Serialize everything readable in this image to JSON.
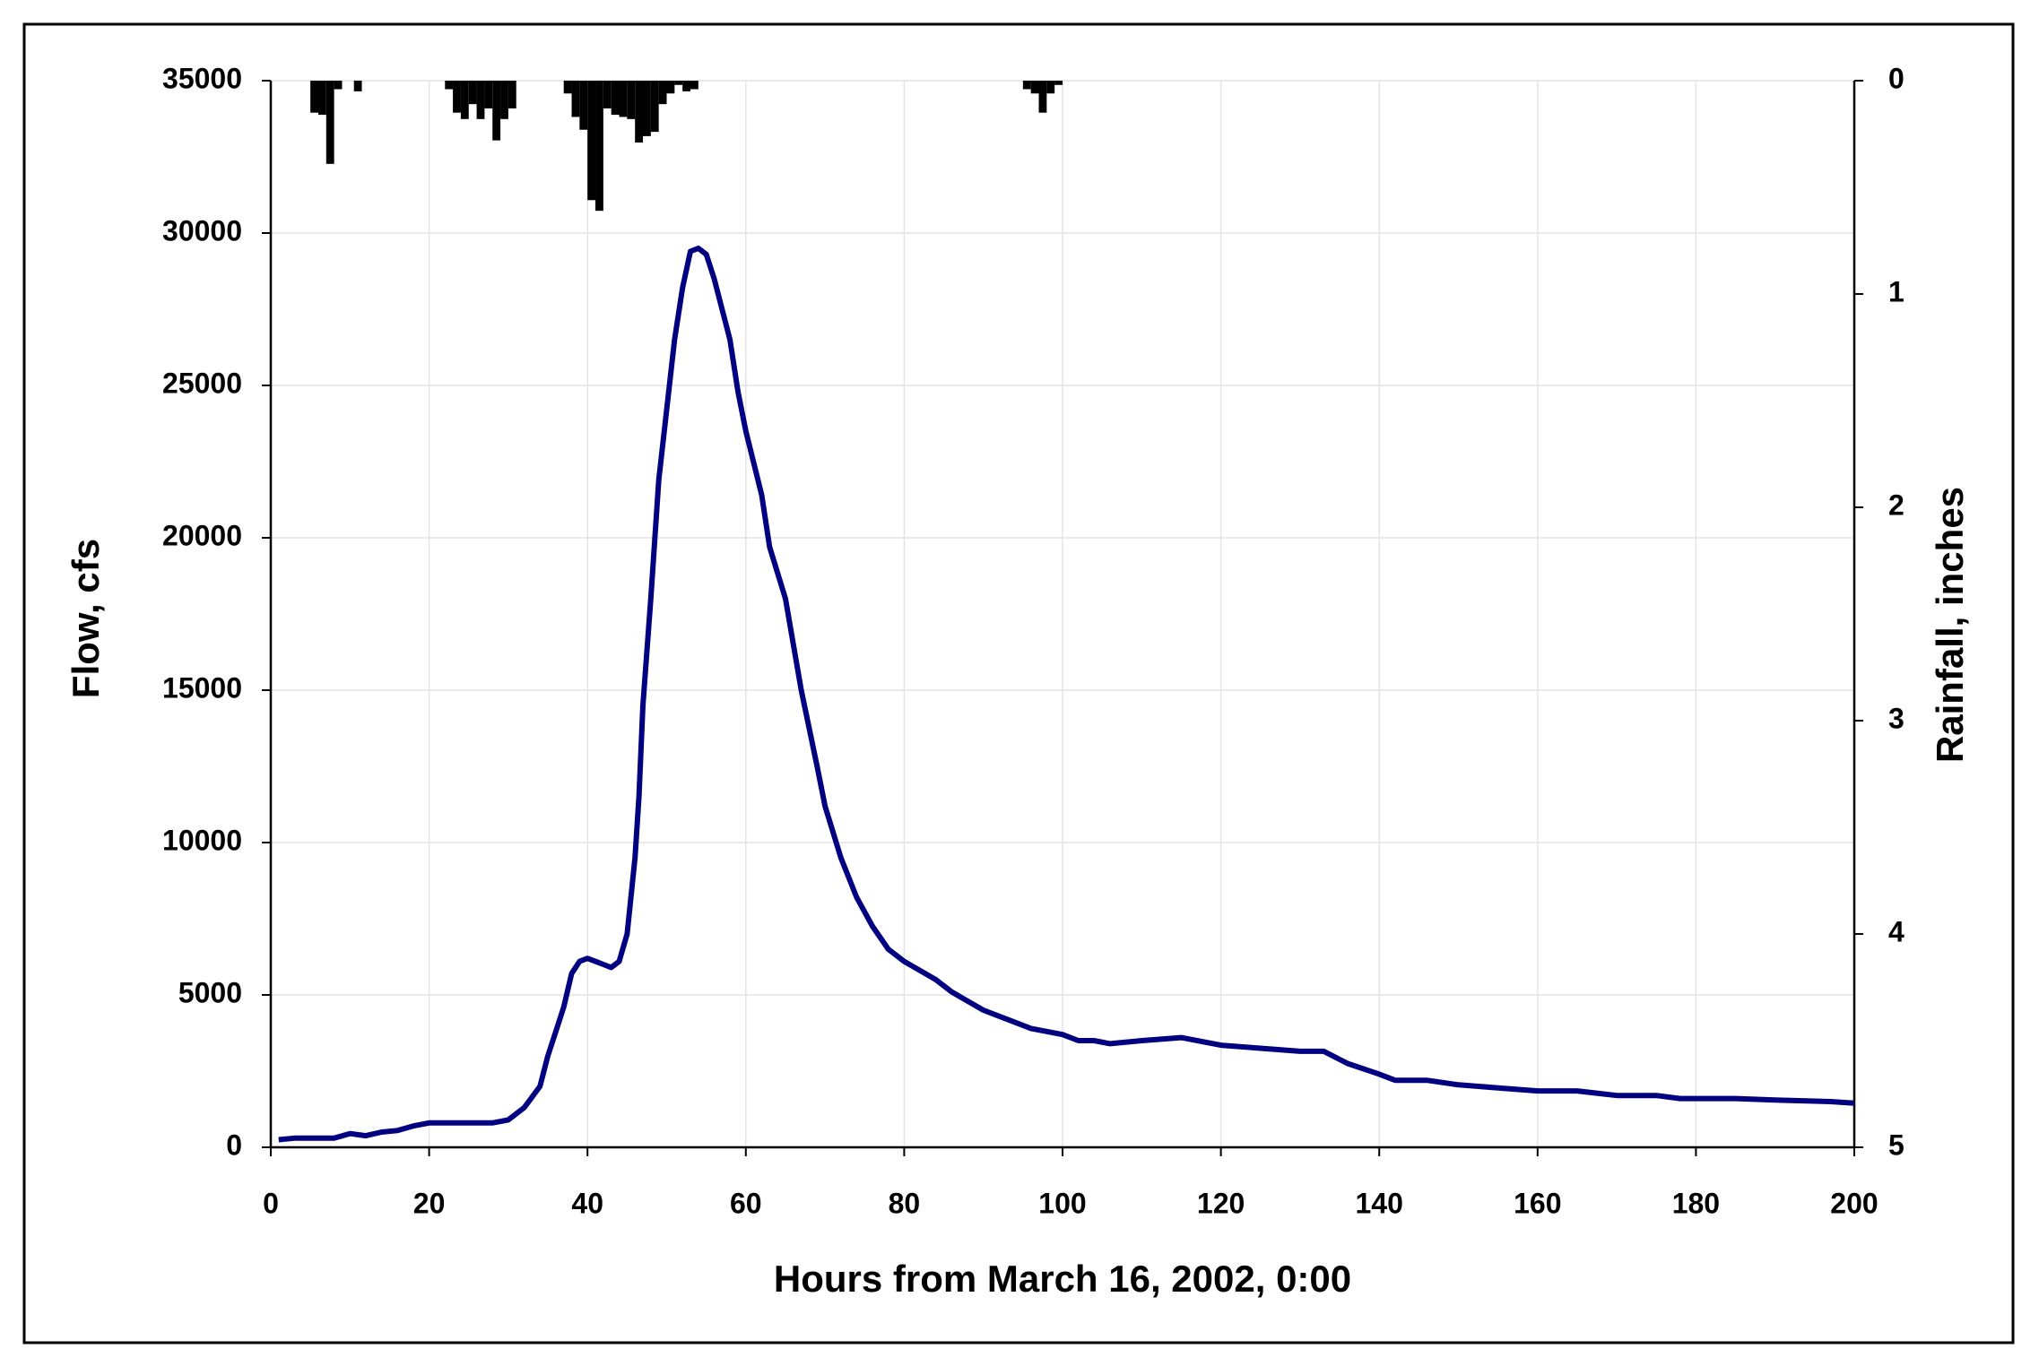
{
  "chart_data": {
    "type": "line",
    "x_label": "Hours from March 16, 2002, 0:00",
    "y_label": "Flow, cfs",
    "y2_label": "Rainfall, inches",
    "xlim": [
      0,
      200
    ],
    "xticks": [
      0,
      20,
      40,
      60,
      80,
      100,
      120,
      140,
      160,
      180,
      200
    ],
    "ylim": [
      0,
      35000
    ],
    "yticks": [
      0,
      5000,
      10000,
      15000,
      20000,
      25000,
      30000,
      35000
    ],
    "y2lim": [
      0,
      5
    ],
    "y2ticks": [
      0,
      1,
      2,
      3,
      4,
      5
    ],
    "y2_reversed": true,
    "grid": true,
    "series": [
      {
        "name": "Flow",
        "type": "line",
        "color": "#000080",
        "x": [
          1,
          3,
          8,
          10,
          12,
          14,
          16,
          18,
          20,
          28,
          30,
          32,
          34,
          35,
          36,
          37,
          38,
          39,
          40,
          41,
          42,
          43,
          44,
          45,
          46,
          46.5,
          47,
          48,
          49,
          50,
          51,
          52,
          53,
          54,
          55,
          56,
          57,
          58,
          59,
          60,
          62,
          63,
          65,
          67,
          69,
          70,
          72,
          74,
          76,
          78,
          80,
          82,
          84,
          86,
          88,
          90,
          92,
          94,
          96,
          100,
          102,
          104,
          106,
          110,
          115,
          120,
          125,
          130,
          133,
          136,
          140,
          142,
          146,
          150,
          155,
          160,
          165,
          170,
          175,
          178,
          185,
          190,
          197,
          200
        ],
        "values": [
          250,
          300,
          300,
          450,
          380,
          500,
          550,
          700,
          800,
          800,
          900,
          1300,
          2000,
          3000,
          3800,
          4600,
          5700,
          6100,
          6200,
          6100,
          6000,
          5900,
          6100,
          7000,
          9500,
          11500,
          14500,
          18000,
          21900,
          24200,
          26500,
          28200,
          29400,
          29500,
          29300,
          28500,
          27500,
          26500,
          24800,
          23500,
          21400,
          19700,
          18000,
          15000,
          12500,
          11200,
          9500,
          8200,
          7250,
          6500,
          6100,
          5800,
          5500,
          5100,
          4800,
          4500,
          4300,
          4100,
          3900,
          3700,
          3500,
          3500,
          3400,
          3500,
          3600,
          3350,
          3250,
          3150,
          3150,
          2750,
          2400,
          2200,
          2200,
          2050,
          1950,
          1850,
          1850,
          1700,
          1700,
          1600,
          1600,
          1550,
          1500,
          1450
        ]
      },
      {
        "name": "Rainfall",
        "type": "bar",
        "axis": "y2",
        "color": "#000000",
        "x": [
          5.5,
          6.5,
          7.5,
          8.5,
          11,
          22.5,
          23.5,
          24.5,
          25.5,
          26.5,
          27.5,
          28.5,
          29.5,
          30.5,
          37.5,
          38.5,
          39.5,
          40.5,
          41.5,
          42.5,
          43.5,
          44.5,
          45.5,
          46.5,
          47.5,
          48.5,
          49.5,
          50.5,
          51.5,
          52.5,
          53.5,
          95.5,
          96.5,
          97.5,
          98.5,
          99.5
        ],
        "values": [
          0.15,
          0.16,
          0.39,
          0.04,
          0.05,
          0.04,
          0.15,
          0.18,
          0.11,
          0.18,
          0.13,
          0.28,
          0.18,
          0.13,
          0.06,
          0.17,
          0.23,
          0.56,
          0.61,
          0.13,
          0.16,
          0.17,
          0.18,
          0.29,
          0.26,
          0.24,
          0.11,
          0.06,
          0.02,
          0.05,
          0.04,
          0.04,
          0.06,
          0.15,
          0.06,
          0.02
        ]
      }
    ]
  }
}
